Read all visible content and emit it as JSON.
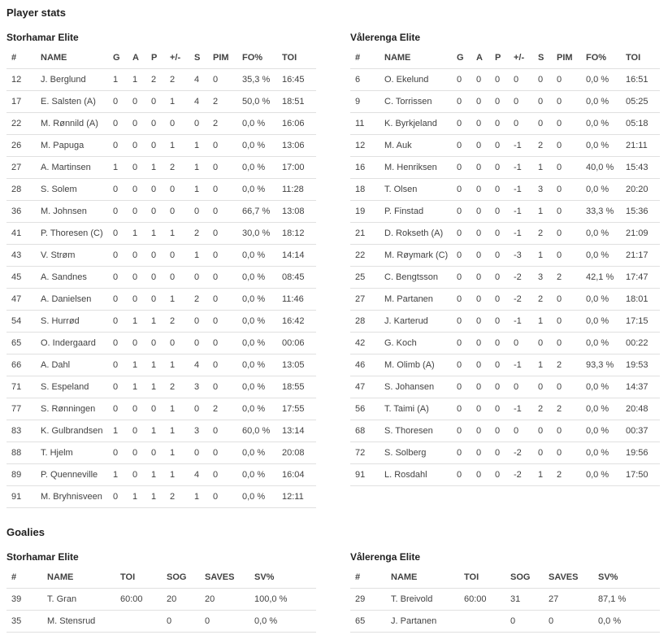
{
  "titles": {
    "player_stats": "Player stats",
    "goalies": "Goalies"
  },
  "player_columns": [
    "#",
    "NAME",
    "G",
    "A",
    "P",
    "+/-",
    "S",
    "PIM",
    "FO%",
    "TOI"
  ],
  "goalie_columns": [
    "#",
    "NAME",
    "TOI",
    "SOG",
    "SAVES",
    "SV%"
  ],
  "colors": {
    "heading_text": "#212121",
    "body_text": "#424242",
    "row_divider": "#e0e0e0",
    "background": "#ffffff"
  },
  "teams": [
    {
      "name": "Storhamar Elite",
      "players": [
        [
          "12",
          "J. Berglund",
          "1",
          "1",
          "2",
          "2",
          "4",
          "0",
          "35,3 %",
          "16:45"
        ],
        [
          "17",
          "E. Salsten (A)",
          "0",
          "0",
          "0",
          "1",
          "4",
          "2",
          "50,0 %",
          "18:51"
        ],
        [
          "22",
          "M. Rønnild (A)",
          "0",
          "0",
          "0",
          "0",
          "0",
          "2",
          "0,0 %",
          "16:06"
        ],
        [
          "26",
          "M. Papuga",
          "0",
          "0",
          "0",
          "1",
          "1",
          "0",
          "0,0 %",
          "13:06"
        ],
        [
          "27",
          "A. Martinsen",
          "1",
          "0",
          "1",
          "2",
          "1",
          "0",
          "0,0 %",
          "17:00"
        ],
        [
          "28",
          "S. Solem",
          "0",
          "0",
          "0",
          "0",
          "1",
          "0",
          "0,0 %",
          "11:28"
        ],
        [
          "36",
          "M. Johnsen",
          "0",
          "0",
          "0",
          "0",
          "0",
          "0",
          "66,7 %",
          "13:08"
        ],
        [
          "41",
          "P. Thoresen (C)",
          "0",
          "1",
          "1",
          "1",
          "2",
          "0",
          "30,0 %",
          "18:12"
        ],
        [
          "43",
          "V. Strøm",
          "0",
          "0",
          "0",
          "0",
          "1",
          "0",
          "0,0 %",
          "14:14"
        ],
        [
          "45",
          "A. Sandnes",
          "0",
          "0",
          "0",
          "0",
          "0",
          "0",
          "0,0 %",
          "08:45"
        ],
        [
          "47",
          "A. Danielsen",
          "0",
          "0",
          "0",
          "1",
          "2",
          "0",
          "0,0 %",
          "11:46"
        ],
        [
          "54",
          "S. Hurrød",
          "0",
          "1",
          "1",
          "2",
          "0",
          "0",
          "0,0 %",
          "16:42"
        ],
        [
          "65",
          "O. Indergaard",
          "0",
          "0",
          "0",
          "0",
          "0",
          "0",
          "0,0 %",
          "00:06"
        ],
        [
          "66",
          "A. Dahl",
          "0",
          "1",
          "1",
          "1",
          "4",
          "0",
          "0,0 %",
          "13:05"
        ],
        [
          "71",
          "S. Espeland",
          "0",
          "1",
          "1",
          "2",
          "3",
          "0",
          "0,0 %",
          "18:55"
        ],
        [
          "77",
          "S. Rønningen",
          "0",
          "0",
          "0",
          "1",
          "0",
          "2",
          "0,0 %",
          "17:55"
        ],
        [
          "83",
          "K. Gulbrandsen",
          "1",
          "0",
          "1",
          "1",
          "3",
          "0",
          "60,0 %",
          "13:14"
        ],
        [
          "88",
          "T. Hjelm",
          "0",
          "0",
          "0",
          "1",
          "0",
          "0",
          "0,0 %",
          "20:08"
        ],
        [
          "89",
          "P. Quenneville",
          "1",
          "0",
          "1",
          "1",
          "4",
          "0",
          "0,0 %",
          "16:04"
        ],
        [
          "91",
          "M. Bryhnisveen",
          "0",
          "1",
          "1",
          "2",
          "1",
          "0",
          "0,0 %",
          "12:11"
        ]
      ],
      "goalies": [
        [
          "39",
          "T. Gran",
          "60:00",
          "20",
          "20",
          "100,0 %"
        ],
        [
          "35",
          "M. Stensrud",
          "",
          "0",
          "0",
          "0,0 %"
        ]
      ]
    },
    {
      "name": "Vålerenga Elite",
      "players": [
        [
          "6",
          "O. Ekelund",
          "0",
          "0",
          "0",
          "0",
          "0",
          "0",
          "0,0 %",
          "16:51"
        ],
        [
          "9",
          "C. Torrissen",
          "0",
          "0",
          "0",
          "0",
          "0",
          "0",
          "0,0 %",
          "05:25"
        ],
        [
          "11",
          "K. Byrkjeland",
          "0",
          "0",
          "0",
          "0",
          "0",
          "0",
          "0,0 %",
          "05:18"
        ],
        [
          "12",
          "M. Auk",
          "0",
          "0",
          "0",
          "-1",
          "2",
          "0",
          "0,0 %",
          "21:11"
        ],
        [
          "16",
          "M. Henriksen",
          "0",
          "0",
          "0",
          "-1",
          "1",
          "0",
          "40,0 %",
          "15:43"
        ],
        [
          "18",
          "T. Olsen",
          "0",
          "0",
          "0",
          "-1",
          "3",
          "0",
          "0,0 %",
          "20:20"
        ],
        [
          "19",
          "P. Finstad",
          "0",
          "0",
          "0",
          "-1",
          "1",
          "0",
          "33,3 %",
          "15:36"
        ],
        [
          "21",
          "D. Rokseth (A)",
          "0",
          "0",
          "0",
          "-1",
          "2",
          "0",
          "0,0 %",
          "21:09"
        ],
        [
          "22",
          "M. Røymark (C)",
          "0",
          "0",
          "0",
          "-3",
          "1",
          "0",
          "0,0 %",
          "21:17"
        ],
        [
          "25",
          "C. Bengtsson",
          "0",
          "0",
          "0",
          "-2",
          "3",
          "2",
          "42,1 %",
          "17:47"
        ],
        [
          "27",
          "M. Partanen",
          "0",
          "0",
          "0",
          "-2",
          "2",
          "0",
          "0,0 %",
          "18:01"
        ],
        [
          "28",
          "J. Karterud",
          "0",
          "0",
          "0",
          "-1",
          "1",
          "0",
          "0,0 %",
          "17:15"
        ],
        [
          "42",
          "G. Koch",
          "0",
          "0",
          "0",
          "0",
          "0",
          "0",
          "0,0 %",
          "00:22"
        ],
        [
          "46",
          "M. Olimb (A)",
          "0",
          "0",
          "0",
          "-1",
          "1",
          "2",
          "93,3 %",
          "19:53"
        ],
        [
          "47",
          "S. Johansen",
          "0",
          "0",
          "0",
          "0",
          "0",
          "0",
          "0,0 %",
          "14:37"
        ],
        [
          "56",
          "T. Taimi (A)",
          "0",
          "0",
          "0",
          "-1",
          "2",
          "2",
          "0,0 %",
          "20:48"
        ],
        [
          "68",
          "S. Thoresen",
          "0",
          "0",
          "0",
          "0",
          "0",
          "0",
          "0,0 %",
          "00:37"
        ],
        [
          "72",
          "S. Solberg",
          "0",
          "0",
          "0",
          "-2",
          "0",
          "0",
          "0,0 %",
          "19:56"
        ],
        [
          "91",
          "L. Rosdahl",
          "0",
          "0",
          "0",
          "-2",
          "1",
          "2",
          "0,0 %",
          "17:50"
        ]
      ],
      "goalies": [
        [
          "29",
          "T. Breivold",
          "60:00",
          "31",
          "27",
          "87,1 %"
        ],
        [
          "65",
          "J. Partanen",
          "",
          "0",
          "0",
          "0,0 %"
        ]
      ]
    }
  ]
}
